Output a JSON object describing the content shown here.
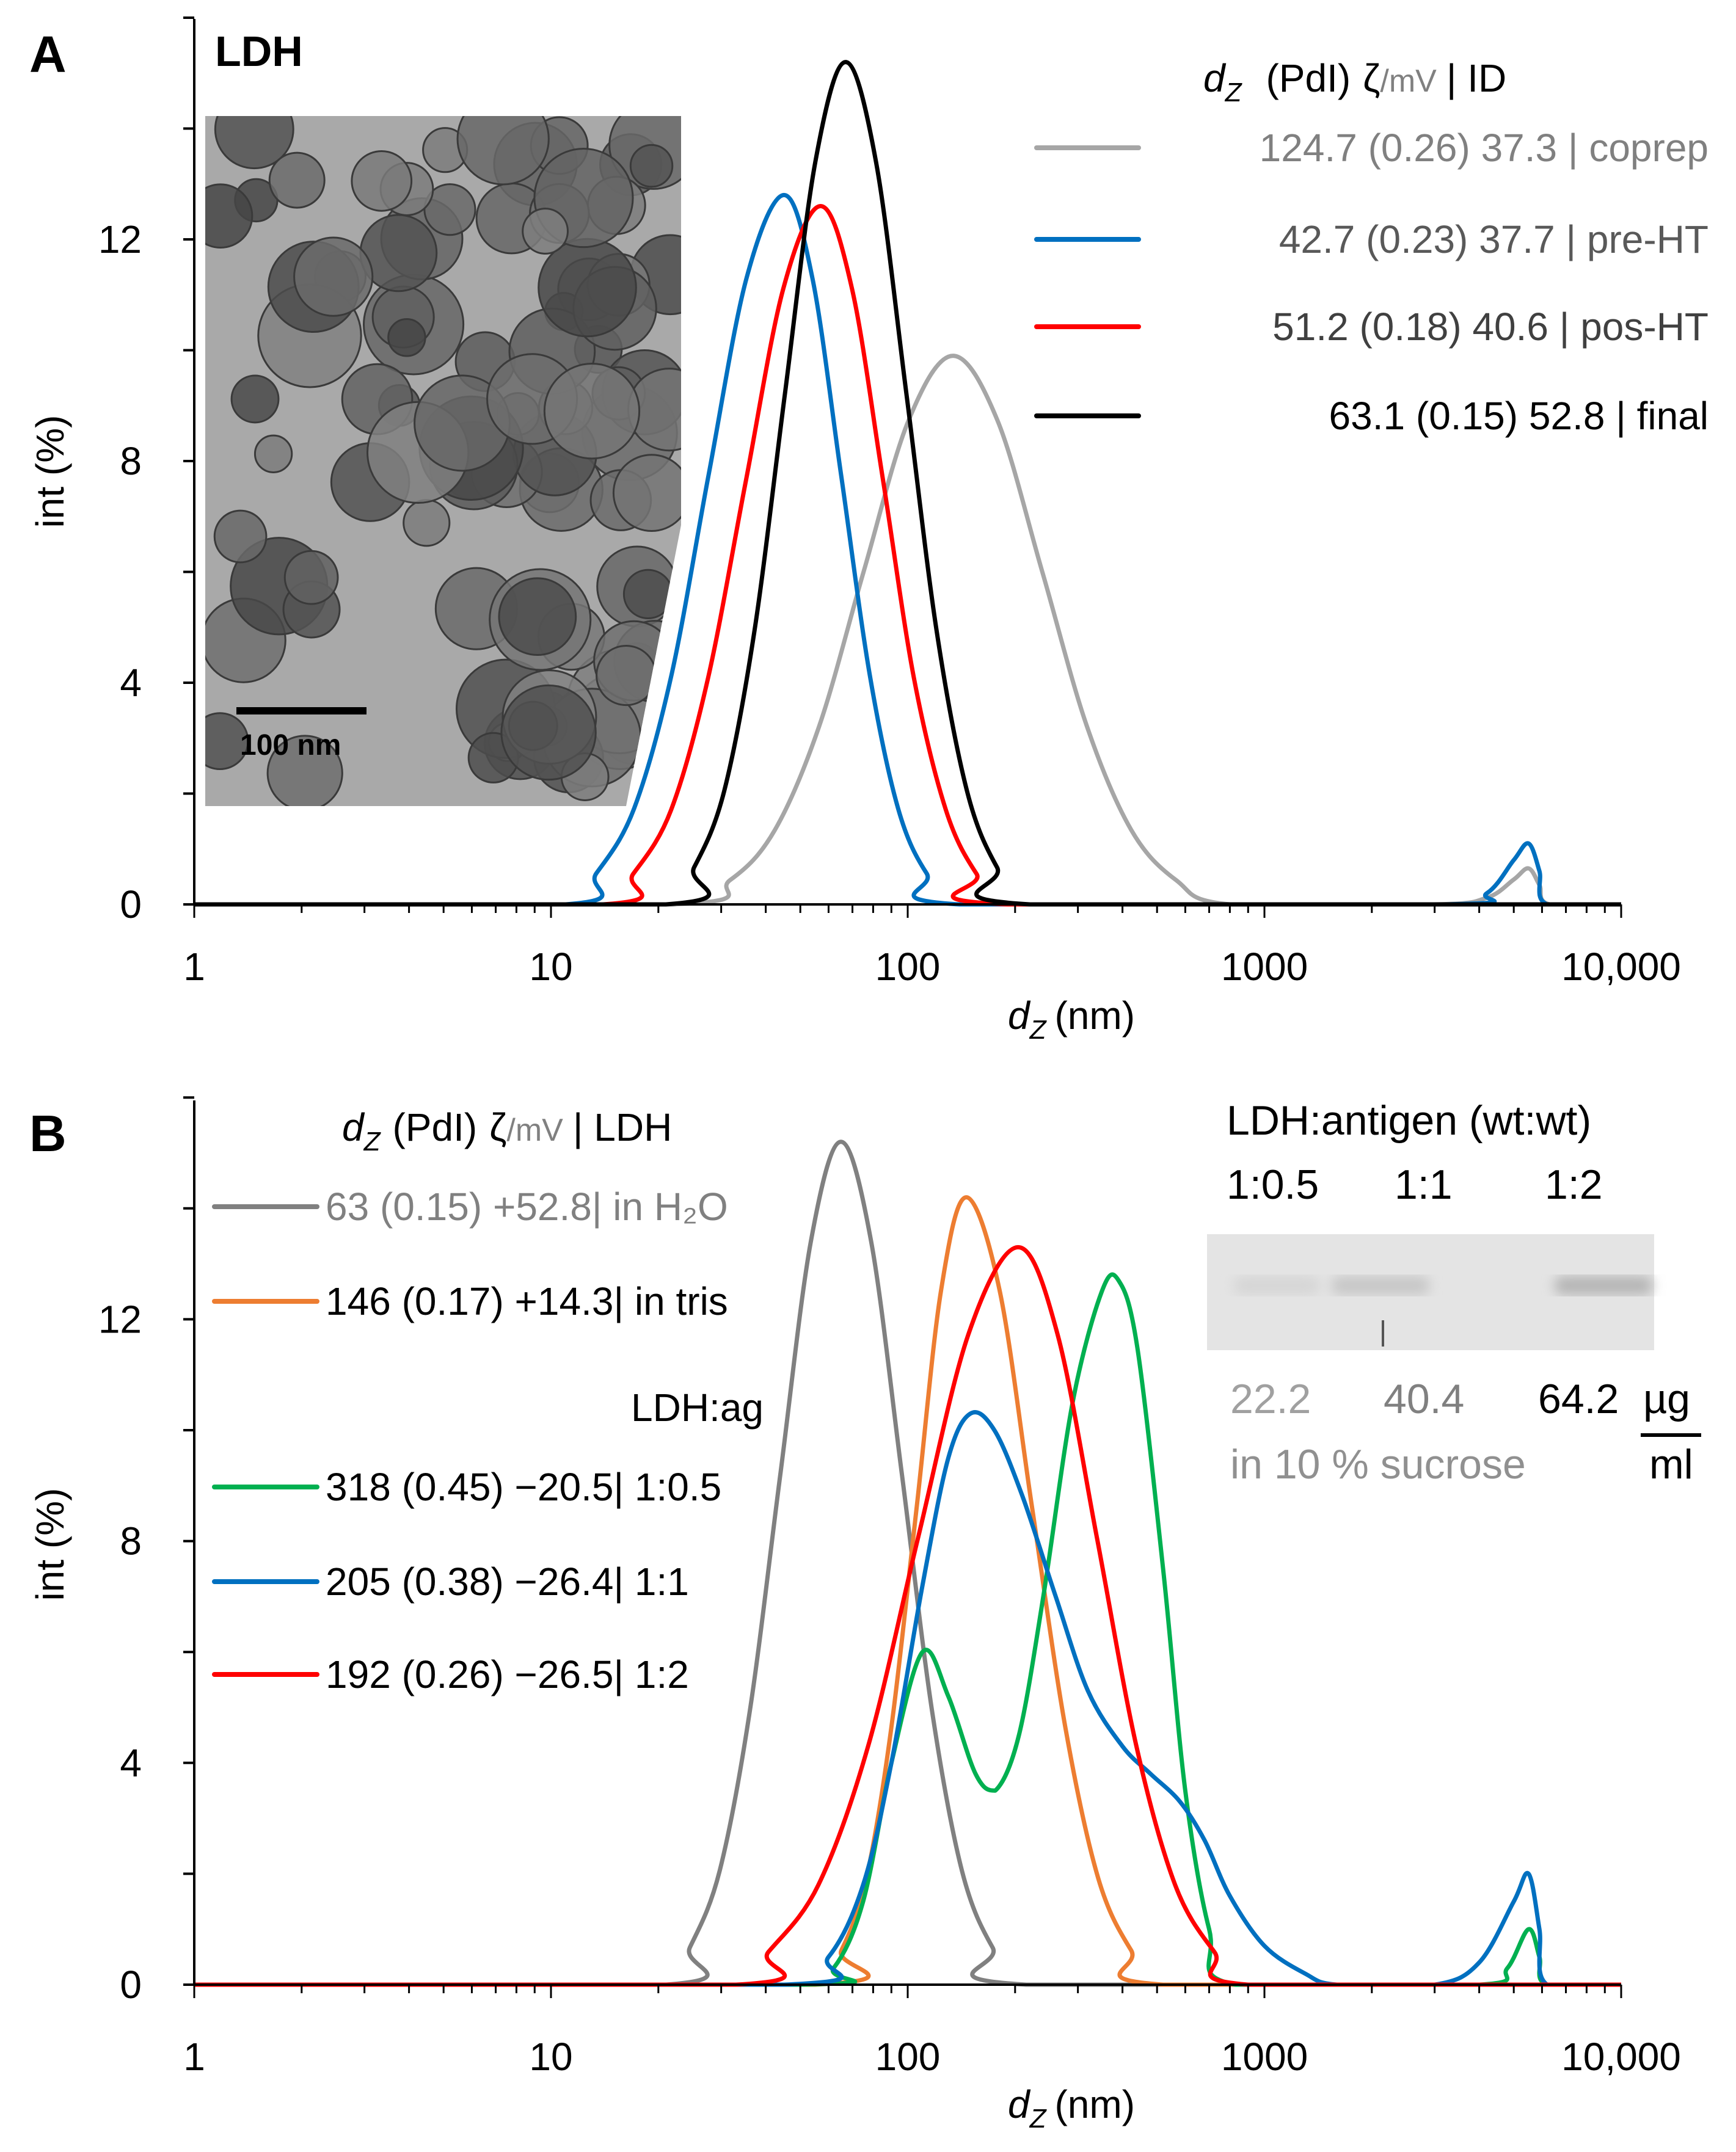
{
  "figure": {
    "panel_a_label": "A",
    "panel_b_label": "B"
  },
  "inset_tem": {
    "label": "LDH",
    "scale_bar": "100 nm"
  },
  "gel": {
    "title": "LDH:antigen (wt:wt)",
    "lanes": [
      "1:0.5",
      "1:1",
      "1:2"
    ],
    "values": [
      "22.2",
      "40.4",
      "64.2"
    ],
    "unit_num": "µg",
    "unit_den": "ml",
    "note": "in 10 % sucrose",
    "band_intensity": [
      0.25,
      0.5,
      0.8
    ]
  },
  "chart_data": [
    {
      "panel": "A",
      "type": "line",
      "xscale": "log",
      "xlim": [
        1,
        10000
      ],
      "ylim": [
        0,
        16
      ],
      "xlabel": {
        "d": "d",
        "sub": "Z",
        "unit": "(nm)"
      },
      "ylabel": "int (%)",
      "xticks": [
        {
          "v": 1,
          "label": "1"
        },
        {
          "v": 10,
          "label": "10"
        },
        {
          "v": 100,
          "label": "100"
        },
        {
          "v": 1000,
          "label": "1000"
        },
        {
          "v": 10000,
          "label": "10,000"
        }
      ],
      "yticks": [
        {
          "v": 0,
          "label": "0"
        },
        {
          "v": 4,
          "label": "4"
        },
        {
          "v": 8,
          "label": "8"
        },
        {
          "v": 12,
          "label": "12"
        }
      ],
      "legend": {
        "placement": "top-right",
        "header": {
          "d": "d",
          "sub": "Z",
          "pdi": "(PdI)",
          "zeta": "ζ",
          "unit": "/mV",
          "id": "| ID"
        }
      },
      "series": [
        {
          "name": "coprep",
          "color": "#a6a6a6",
          "text_color": "#808080",
          "label": "124.7 (0.26) 37.3 | coprep",
          "points": [
            [
              1,
              0
            ],
            [
              22,
              0
            ],
            [
              31.8,
              0.44
            ],
            [
              42.4,
              1.34
            ],
            [
              56.5,
              3.22
            ],
            [
              75.3,
              6.01
            ],
            [
              100.5,
              8.73
            ],
            [
              134,
              9.9
            ],
            [
              178.6,
              8.73
            ],
            [
              238.2,
              6.01
            ],
            [
              317.7,
              3.22
            ],
            [
              423.6,
              1.34
            ],
            [
              565,
              0.44
            ],
            [
              800,
              0
            ],
            [
              3000,
              0
            ],
            [
              4200,
              0.12
            ],
            [
              5000,
              0.45
            ],
            [
              5500,
              0.65
            ],
            [
              5900,
              0.35
            ],
            [
              6300,
              0
            ],
            [
              10000,
              0
            ]
          ]
        },
        {
          "name": "pre-HT",
          "color": "#0070c0",
          "text_color": "#595959",
          "label": "42.7 (0.23) 37.7 | pre-HT",
          "points": [
            [
              1,
              0
            ],
            [
              11,
              0
            ],
            [
              13.4,
              0.56
            ],
            [
              17.1,
              1.73
            ],
            [
              21.8,
              4.16
            ],
            [
              27.7,
              7.77
            ],
            [
              35.3,
              11.29
            ],
            [
              45,
              12.8
            ],
            [
              54.1,
              11.29
            ],
            [
              65,
              7.77
            ],
            [
              78.2,
              4.16
            ],
            [
              94,
              1.73
            ],
            [
              113,
              0.56
            ],
            [
              140,
              0
            ],
            [
              3200,
              0
            ],
            [
              4200,
              0.2
            ],
            [
              5000,
              0.8
            ],
            [
              5500,
              1.1
            ],
            [
              5900,
              0.6
            ],
            [
              6200,
              0
            ],
            [
              10000,
              0
            ]
          ]
        },
        {
          "name": "pos-HT",
          "color": "#ff0000",
          "text_color": "#404040",
          "label": "51.2 (0.18) 40.6 | pos-HT",
          "points": [
            [
              1,
              0
            ],
            [
              14,
              0
            ],
            [
              17,
              0.55
            ],
            [
              21.7,
              1.7
            ],
            [
              27.6,
              4.1
            ],
            [
              35.2,
              7.65
            ],
            [
              44.8,
              11.11
            ],
            [
              57,
              12.6
            ],
            [
              69.8,
              11.11
            ],
            [
              85.3,
              7.65
            ],
            [
              104,
              4.1
            ],
            [
              128,
              1.7
            ],
            [
              156,
              0.55
            ],
            [
              190,
              0
            ],
            [
              10000,
              0
            ]
          ]
        },
        {
          "name": "final",
          "color": "#000000",
          "text_color": "#000000",
          "label": "63.1 (0.15) 52.8 | final",
          "points": [
            [
              1,
              0
            ],
            [
              21,
              0
            ],
            [
              25.2,
              0.67
            ],
            [
              30.6,
              2.05
            ],
            [
              37.2,
              4.94
            ],
            [
              45.3,
              9.23
            ],
            [
              55.1,
              13.4
            ],
            [
              67,
              15.2
            ],
            [
              81.5,
              13.4
            ],
            [
              99.1,
              9.23
            ],
            [
              120.5,
              4.94
            ],
            [
              146.6,
              2.05
            ],
            [
              178,
              0.67
            ],
            [
              220,
              0
            ],
            [
              10000,
              0
            ]
          ]
        }
      ]
    },
    {
      "panel": "B",
      "type": "line",
      "xscale": "log",
      "xlim": [
        1,
        10000
      ],
      "ylim": [
        0,
        16
      ],
      "xlabel": {
        "d": "d",
        "sub": "Z",
        "unit": "(nm)"
      },
      "ylabel": "int (%)",
      "xticks": [
        {
          "v": 1,
          "label": "1"
        },
        {
          "v": 10,
          "label": "10"
        },
        {
          "v": 100,
          "label": "100"
        },
        {
          "v": 1000,
          "label": "1000"
        },
        {
          "v": 10000,
          "label": "10,000"
        }
      ],
      "yticks": [
        {
          "v": 0,
          "label": "0"
        },
        {
          "v": 4,
          "label": "4"
        },
        {
          "v": 8,
          "label": "8"
        },
        {
          "v": 12,
          "label": "12"
        }
      ],
      "legend": {
        "placement": "top-left",
        "header": {
          "d": "d",
          "sub": "Z",
          "pdi": "(PdI)",
          "zeta": "ζ",
          "unit": "/mV",
          "id": "| LDH"
        },
        "subheader": "LDH:ag"
      },
      "series": [
        {
          "name": "in H2O",
          "color": "#808080",
          "text_color": "#808080",
          "label": "63 (0.15) +52.8| in H₂O",
          "points": [
            [
              1,
              0
            ],
            [
              21,
              0
            ],
            [
              24.5,
              0.67
            ],
            [
              29.7,
              2.05
            ],
            [
              36.1,
              4.94
            ],
            [
              44,
              9.23
            ],
            [
              53.5,
              13.4
            ],
            [
              65,
              15.2
            ],
            [
              79,
              13.4
            ],
            [
              96.2,
              9.23
            ],
            [
              117,
              4.94
            ],
            [
              142,
              2.05
            ],
            [
              173,
              0.67
            ],
            [
              215,
              0
            ],
            [
              10000,
              0
            ]
          ]
        },
        {
          "name": "in tris",
          "color": "#ed7d31",
          "text_color": "#000000",
          "label": "146 (0.17) +14.3| in tris",
          "points": [
            [
              1,
              0
            ],
            [
              55,
              0
            ],
            [
              65.2,
              0.62
            ],
            [
              76.6,
              1.92
            ],
            [
              89.9,
              4.62
            ],
            [
              106,
              8.62
            ],
            [
              124,
              12.52
            ],
            [
              146,
              14.2
            ],
            [
              181,
              12.52
            ],
            [
              223,
              8.62
            ],
            [
              277,
              4.62
            ],
            [
              342,
              1.92
            ],
            [
              423,
              0.62
            ],
            [
              520,
              0
            ],
            [
              10000,
              0
            ]
          ]
        },
        {
          "name": "1:0.5",
          "color": "#00b050",
          "text_color": "#000000",
          "label": "318 (0.45) −20.5| 1:0.5",
          "points": [
            [
              1,
              0
            ],
            [
              50,
              0
            ],
            [
              62,
              0.3
            ],
            [
              75,
              1.5
            ],
            [
              90,
              4.0
            ],
            [
              110,
              6.0
            ],
            [
              130,
              5.2
            ],
            [
              155,
              3.8
            ],
            [
              176,
              3.5
            ],
            [
              205,
              4.5
            ],
            [
              240,
              7.0
            ],
            [
              290,
              10.5
            ],
            [
              350,
              12.5
            ],
            [
              390,
              12.7
            ],
            [
              440,
              11.5
            ],
            [
              520,
              7.5
            ],
            [
              600,
              3.5
            ],
            [
              700,
              1.0
            ],
            [
              830,
              0
            ],
            [
              4000,
              0
            ],
            [
              4800,
              0.3
            ],
            [
              5500,
              1.0
            ],
            [
              5900,
              0.5
            ],
            [
              6200,
              0
            ],
            [
              10000,
              0
            ]
          ]
        },
        {
          "name": "1:1",
          "color": "#0070c0",
          "text_color": "#000000",
          "label": "205 (0.38) −26.4| 1:1",
          "points": [
            [
              1,
              0
            ],
            [
              45,
              0
            ],
            [
              60,
              0.5
            ],
            [
              75,
              1.8
            ],
            [
              90,
              4.0
            ],
            [
              110,
              7.2
            ],
            [
              130,
              9.5
            ],
            [
              150,
              10.3
            ],
            [
              175,
              10.0
            ],
            [
              210,
              8.8
            ],
            [
              260,
              7.0
            ],
            [
              320,
              5.3
            ],
            [
              400,
              4.3
            ],
            [
              480,
              3.8
            ],
            [
              580,
              3.3
            ],
            [
              680,
              2.6
            ],
            [
              800,
              1.6
            ],
            [
              1000,
              0.7
            ],
            [
              1300,
              0.2
            ],
            [
              1600,
              0
            ],
            [
              3000,
              0
            ],
            [
              4000,
              0.4
            ],
            [
              5000,
              1.5
            ],
            [
              5500,
              2.0
            ],
            [
              5900,
              1.0
            ],
            [
              6200,
              0
            ],
            [
              10000,
              0
            ]
          ]
        },
        {
          "name": "1:2",
          "color": "#ff0000",
          "text_color": "#000000",
          "label": "192 (0.26) −26.5| 1:2",
          "points": [
            [
              1,
              0
            ],
            [
              33,
              0
            ],
            [
              40.7,
              0.59
            ],
            [
              56.2,
              1.8
            ],
            [
              77.6,
              4.32
            ],
            [
              107,
              8.07
            ],
            [
              148,
              11.73
            ],
            [
              204,
              13.3
            ],
            [
              263,
              11.73
            ],
            [
              339,
              8.07
            ],
            [
              437,
              4.32
            ],
            [
              562,
              1.8
            ],
            [
              724,
              0.59
            ],
            [
              900,
              0
            ],
            [
              10000,
              0
            ]
          ]
        }
      ]
    }
  ]
}
